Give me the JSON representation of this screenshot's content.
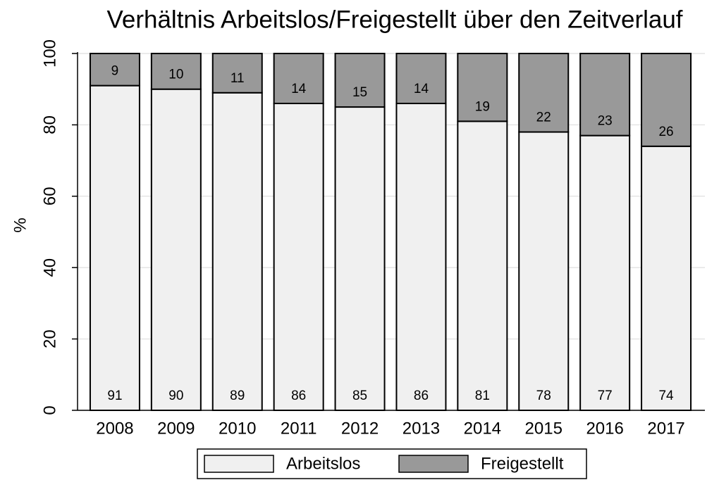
{
  "chart_data": {
    "type": "stacked_bar",
    "title": "Verhältnis Arbeitslos/Freigestellt über den Zeitverlauf",
    "ylabel": "%",
    "categories": [
      "2008",
      "2009",
      "2010",
      "2011",
      "2012",
      "2013",
      "2014",
      "2015",
      "2016",
      "2017"
    ],
    "series": [
      {
        "name": "Arbeitslos",
        "color": "#f0f0f0",
        "values": [
          91,
          90,
          89,
          86,
          85,
          86,
          81,
          78,
          77,
          74
        ]
      },
      {
        "name": "Freigestellt",
        "color": "#999999",
        "values": [
          9,
          10,
          11,
          14,
          15,
          14,
          19,
          22,
          23,
          26
        ]
      }
    ],
    "ylim": [
      0,
      100
    ],
    "yticks": [
      0,
      20,
      40,
      60,
      80,
      100
    ],
    "grid": true,
    "legend": "bottom"
  }
}
